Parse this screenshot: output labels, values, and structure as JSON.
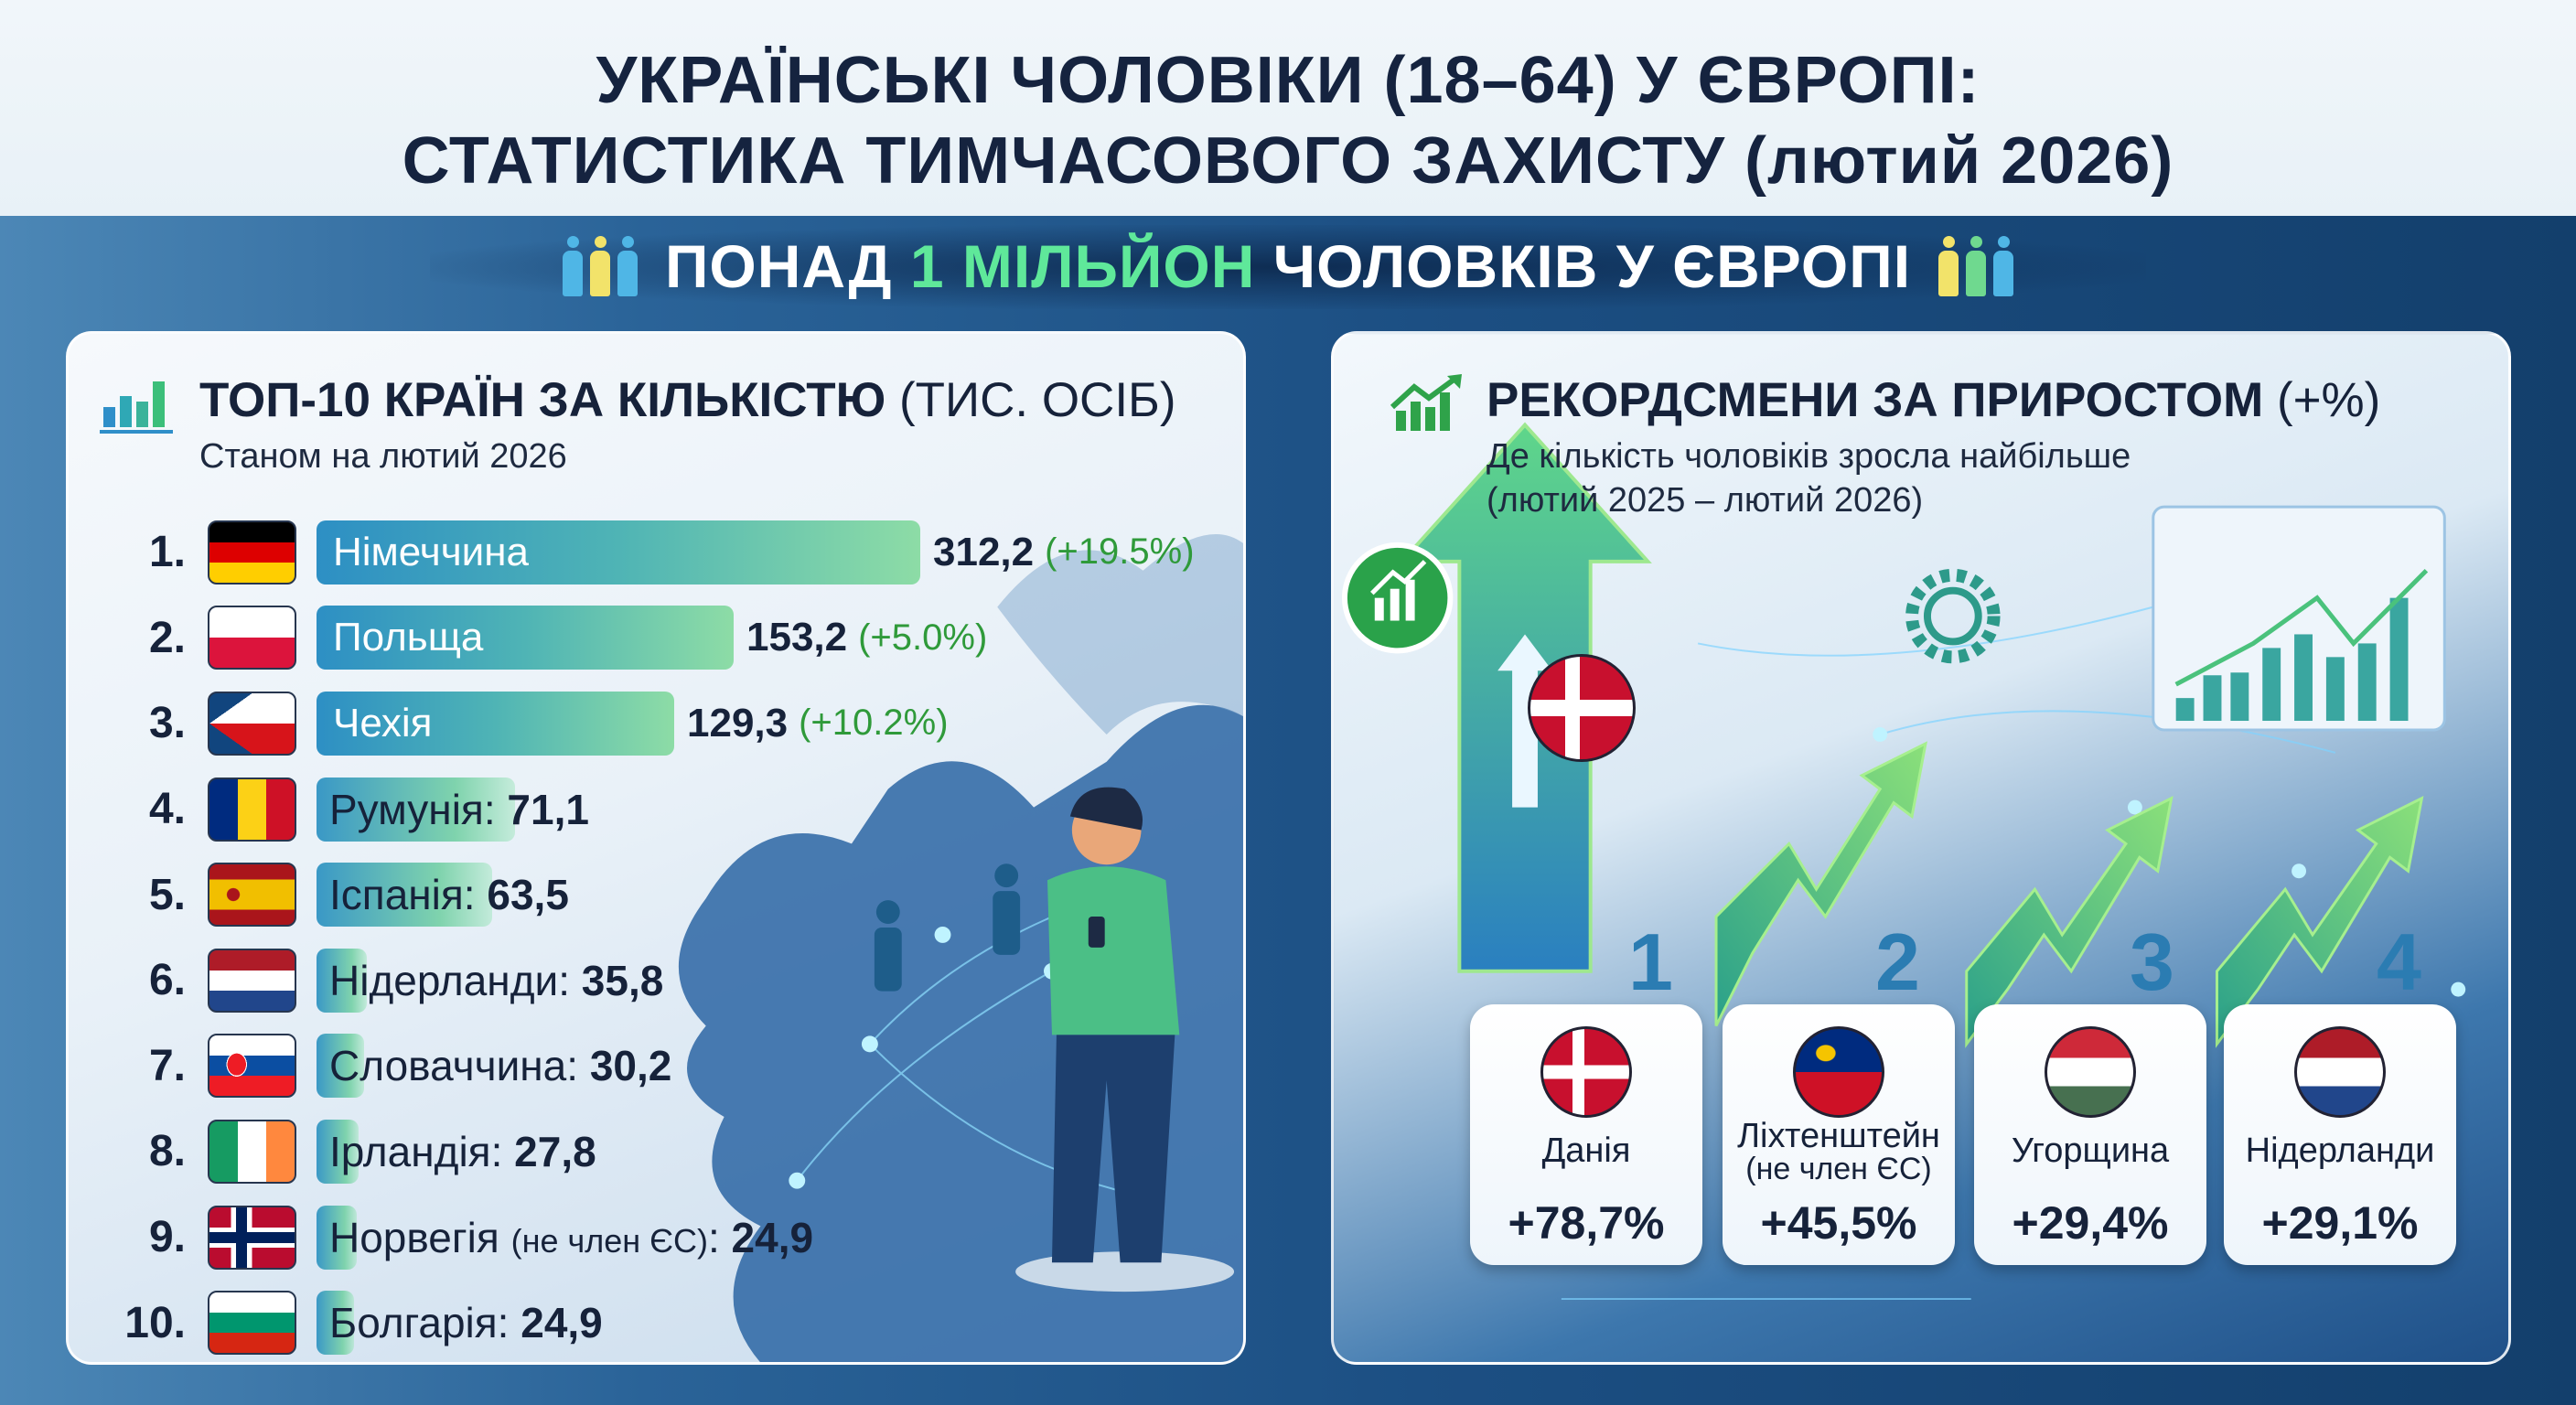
{
  "header": {
    "title_line1": "УКРАЇНСЬКІ ЧОЛОВІКИ (18–64) У ЄВРОПІ:",
    "title_line2": "СТАТИСТИКА ТИМЧАСОВОГО ЗАХИСТУ (лютий 2026)"
  },
  "banner": {
    "prefix": "ПОНАД ",
    "highlight": "1 МІЛЬЙОН",
    "suffix": " ЧОЛОВКІВ У ЄВРОПІ",
    "icon": "people-icon",
    "highlight_color": "#5fe89a"
  },
  "top10": {
    "icon": "bar-chart-icon",
    "title_bold": "ТОП-10 КРАЇН ЗА КІЛЬКІСТЮ",
    "title_unit": " (ТИС. ОСІБ)",
    "subtitle": "Станом на лютий 2026",
    "rows": [
      {
        "rank": "1.",
        "flag": "de",
        "name": "Німеччина",
        "value": "312,2",
        "change": "(+19.5%)"
      },
      {
        "rank": "2.",
        "flag": "pl",
        "name": "Польща",
        "value": "153,2",
        "change": "(+5.0%)"
      },
      {
        "rank": "3.",
        "flag": "cz",
        "name": "Чехія",
        "value": "129,3",
        "change": "(+10.2%)"
      },
      {
        "rank": "4.",
        "flag": "ro",
        "name": "Румунія:",
        "value": " 71,1"
      },
      {
        "rank": "5.",
        "flag": "es",
        "name": "Іспанія:",
        "value": " 63,5"
      },
      {
        "rank": "6.",
        "flag": "nl",
        "name": "Нідерланди:",
        "value": " 35,8"
      },
      {
        "rank": "7.",
        "flag": "sk",
        "name": "Словаччина:",
        "value": " 30,2"
      },
      {
        "rank": "8.",
        "flag": "ie",
        "name": "Ірландія:",
        "value": " 27,8"
      },
      {
        "rank": "9.",
        "flag": "no",
        "name": "Норвегія ",
        "note": "(не член ЄС)",
        "sep": ":",
        "value": " 24,9"
      },
      {
        "rank": "10.",
        "flag": "bg",
        "name": "Болгарія:",
        "value": " 24,9"
      }
    ]
  },
  "growth": {
    "icon": "growth-chart-icon",
    "title_bold": "РЕКОРДСМЕНИ ЗА ПРИРОСТОМ",
    "title_unit": " (+%)",
    "subtitle_line1": "Де кількість чоловіків зросла найбільше",
    "subtitle_line2": "(лютий 2025 – лютий 2026)",
    "cards": [
      {
        "rank": "1",
        "flag": "dk",
        "name": "Данія",
        "value": "+78,7%"
      },
      {
        "rank": "2",
        "flag": "li",
        "name": "Ліхтенштейн",
        "note": "(не член ЄС)",
        "value": "+45,5%"
      },
      {
        "rank": "3",
        "flag": "hu",
        "name": "Угорщина",
        "value": "+29,4%"
      },
      {
        "rank": "4",
        "flag": "nl",
        "name": "Нідерланди",
        "value": "+29,1%"
      }
    ]
  }
}
